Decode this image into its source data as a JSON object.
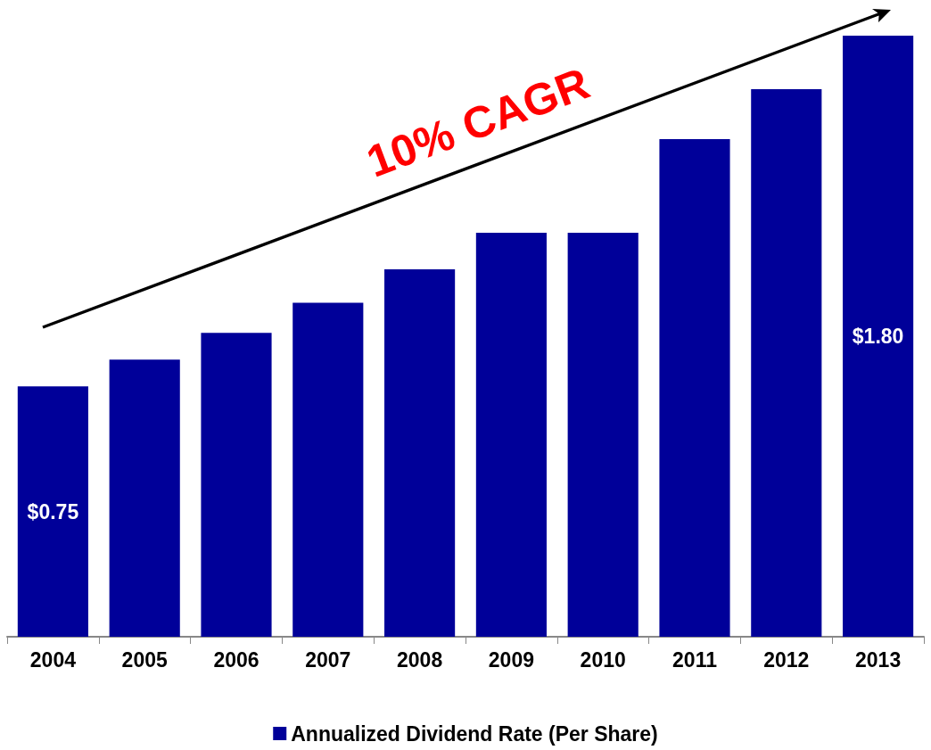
{
  "chart_data": {
    "type": "bar",
    "categories": [
      "2004",
      "2005",
      "2006",
      "2007",
      "2008",
      "2009",
      "2010",
      "2011",
      "2012",
      "2013"
    ],
    "series": [
      {
        "name": "Annualized Dividend Rate (Per Share)",
        "color": "#000099",
        "values": [
          0.75,
          0.83,
          0.91,
          1.0,
          1.1,
          1.21,
          1.21,
          1.49,
          1.64,
          1.8
        ],
        "value_labels": [
          "$0.75",
          null,
          null,
          null,
          null,
          null,
          null,
          null,
          null,
          "$1.80"
        ]
      }
    ],
    "annotations": [
      "10% CAGR"
    ],
    "legend": "bottom",
    "tick_labels": "x"
  }
}
